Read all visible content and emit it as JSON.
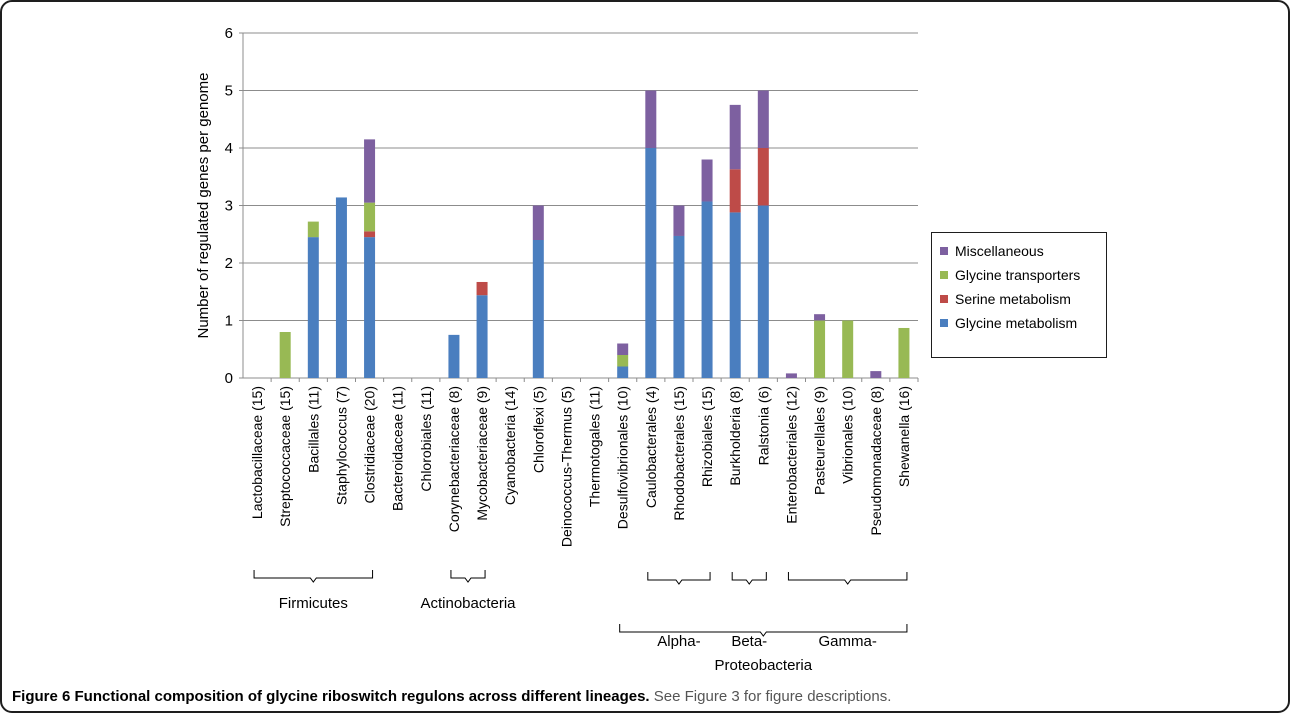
{
  "chart_data": {
    "type": "bar",
    "stacked": true,
    "ylabel": "Number of regulated genes per genome",
    "ylim": [
      0,
      6
    ],
    "yticks": [
      "0",
      "1",
      "2",
      "3",
      "4",
      "5",
      "6"
    ],
    "grid": true,
    "legend_position": "right",
    "categories": [
      "Lactobacillaceae (15)",
      "Streptococcaceae (15)",
      "Bacillales (11)",
      "Staphylococcus (7)",
      "Clostridiaceae (20)",
      "Bacteroidaceae (11)",
      "Chlorobiales (11)",
      "Corynebacteriaceae (8)",
      "Mycobacteriaceae (9)",
      "Cyanobacteria (14)",
      "Chloroflexi (5)",
      "Deinococcus-Thermus (5)",
      "Thermotogales (11)",
      "Desulfovibrionales (10)",
      "Caulobacterales (4)",
      "Rhodobacterales (15)",
      "Rhizobiales (15)",
      "Burkholderia (8)",
      "Ralstonia (6)",
      "Enterobacteriales (12)",
      "Pasteurellales (9)",
      "Vibrionales (10)",
      "Pseudomonadaceae (8)",
      "Shewanella (16)"
    ],
    "series": [
      {
        "name": "Glycine metabolism",
        "color": "#4a7ebf",
        "values": [
          0,
          0,
          2.45,
          3.14,
          2.45,
          0,
          0,
          0.75,
          1.44,
          0,
          2.4,
          0,
          0,
          0.2,
          4.0,
          2.47,
          3.07,
          2.88,
          3.0,
          0,
          0,
          0,
          0,
          0
        ]
      },
      {
        "name": "Serine metabolism",
        "color": "#be4b48",
        "values": [
          0,
          0,
          0,
          0,
          0.1,
          0,
          0,
          0,
          0.23,
          0,
          0,
          0,
          0,
          0,
          0,
          0,
          0,
          0.75,
          1.0,
          0,
          0,
          0,
          0,
          0
        ]
      },
      {
        "name": "Glycine transporters",
        "color": "#98b954",
        "values": [
          0,
          0.8,
          0.27,
          0,
          0.5,
          0,
          0,
          0,
          0,
          0,
          0,
          0,
          0,
          0.2,
          0,
          0,
          0,
          0,
          0,
          0,
          1.0,
          1.0,
          0,
          0.87
        ]
      },
      {
        "name": "Miscellaneous",
        "color": "#7d60a0",
        "values": [
          0,
          0,
          0,
          0,
          1.1,
          0,
          0,
          0,
          0,
          0,
          0.6,
          0,
          0,
          0.2,
          1.0,
          0.53,
          0.73,
          1.12,
          1.0,
          0.08,
          0.11,
          0,
          0.12,
          0
        ]
      }
    ],
    "groups": [
      {
        "label": "Firmicutes",
        "from": 0,
        "to": 4,
        "level": 0
      },
      {
        "label": "Actinobacteria",
        "from": 7,
        "to": 8,
        "level": 0
      },
      {
        "label": "Alpha-",
        "from": 14,
        "to": 16,
        "level": 1
      },
      {
        "label": "Beta-",
        "from": 17,
        "to": 18,
        "level": 1
      },
      {
        "label": "Gamma-",
        "from": 19,
        "to": 23,
        "level": 1
      },
      {
        "label": "Proteobacteria",
        "from": 13,
        "to": 23,
        "level": 2
      }
    ]
  },
  "caption": {
    "title": "Figure 6 Functional composition of glycine riboswitch regulons across different lineages.",
    "description": "See Figure 3 for figure descriptions."
  }
}
